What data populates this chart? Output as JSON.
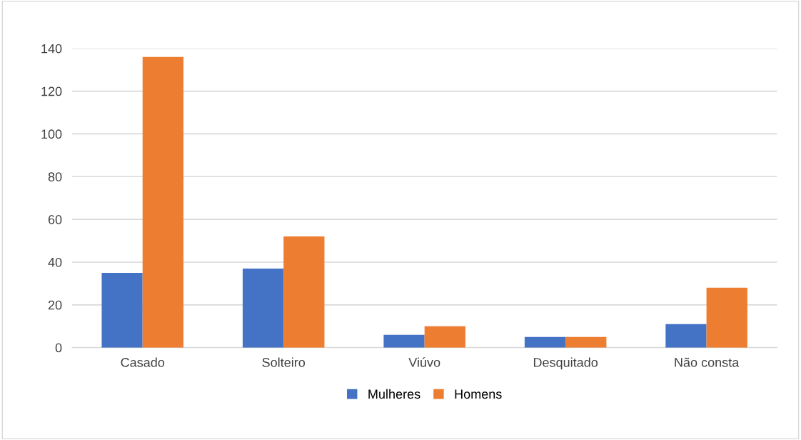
{
  "chart_data": {
    "type": "bar",
    "categories": [
      "Casado",
      "Solteiro",
      "Viúvo",
      "Desquitado",
      "Não consta"
    ],
    "series": [
      {
        "name": "Mulheres",
        "color": "#4472c4",
        "values": [
          35,
          37,
          6,
          5,
          11
        ]
      },
      {
        "name": "Homens",
        "color": "#ed7d31",
        "values": [
          136,
          52,
          10,
          5,
          28
        ]
      }
    ],
    "ylim": [
      0,
      140
    ],
    "yticks": [
      0,
      20,
      40,
      60,
      80,
      100,
      120,
      140
    ],
    "grid": "y",
    "legend": "bottom"
  }
}
